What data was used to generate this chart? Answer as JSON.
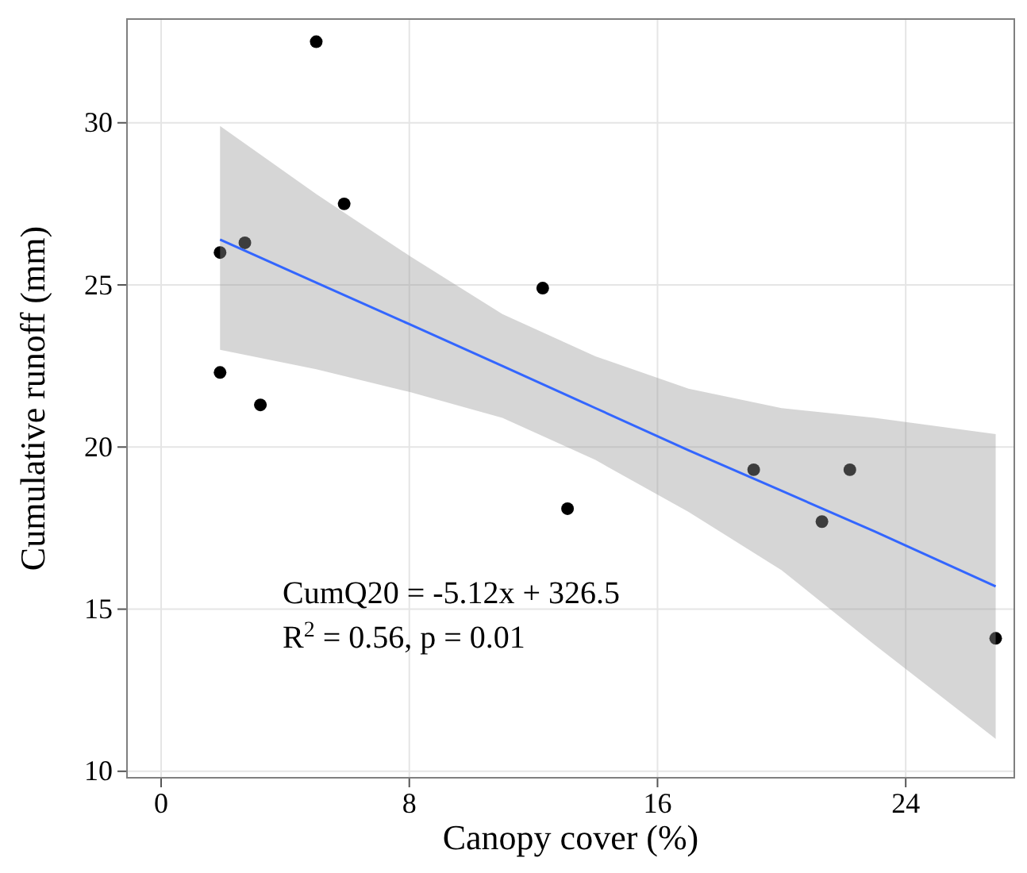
{
  "chart_data": {
    "type": "scatter",
    "xlabel": "Canopy cover (%)",
    "ylabel": "Cumulative runoff (mm)",
    "xlim": [
      -1.1,
      27.5
    ],
    "ylim": [
      9.8,
      33.2
    ],
    "xticks": [
      0,
      8,
      16,
      24
    ],
    "yticks": [
      10,
      15,
      20,
      25,
      30
    ],
    "grid": true,
    "marker": "circle",
    "series": [
      {
        "color": "#000000",
        "x": [
          1.9,
          1.9,
          2.7,
          3.2,
          5.0,
          5.9,
          12.3,
          13.1,
          19.1,
          21.3,
          22.2,
          26.9
        ],
        "values": [
          26.0,
          22.3,
          26.3,
          21.3,
          32.5,
          27.5,
          24.9,
          18.1,
          19.3,
          17.7,
          19.3,
          14.1
        ]
      },
      {
        "type": "line",
        "marker": "none",
        "color": "#3366ff",
        "x": [
          1.9,
          5,
          8,
          11,
          14,
          17,
          20,
          23,
          26.9
        ],
        "values": [
          26.4,
          25.07,
          23.79,
          22.5,
          21.2,
          19.9,
          18.65,
          17.4,
          15.7
        ],
        "lower": [
          23.0,
          22.4,
          21.7,
          20.9,
          19.6,
          18.0,
          16.2,
          13.9,
          11.0
        ],
        "upper": [
          29.9,
          27.8,
          25.9,
          24.1,
          22.8,
          21.8,
          21.2,
          20.9,
          20.4
        ]
      }
    ],
    "annotations": [
      "CumQ20 = -5.12x + 326.5",
      "R$^{2}$ = 0.56, p = 0.01"
    ]
  }
}
